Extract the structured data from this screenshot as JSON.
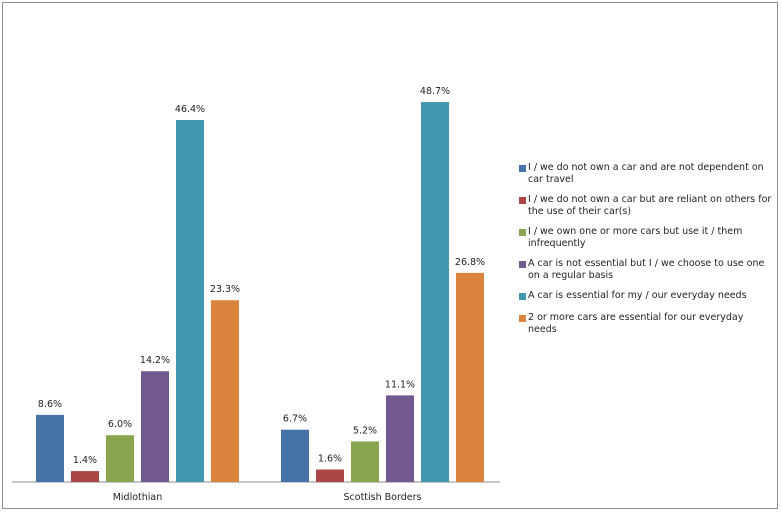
{
  "chart_data": {
    "type": "bar",
    "title": "",
    "xlabel": "",
    "ylabel": "",
    "ylim": [
      0,
      52
    ],
    "grid": false,
    "legend_position": "right",
    "categories": [
      "Midlothian",
      "Scottish Borders"
    ],
    "series": [
      {
        "name": "I / we do not own a car and are not dependent on car travel",
        "color": "#4572a7",
        "values": [
          8.6,
          6.7
        ],
        "labels": [
          "8.6%",
          "6.7%"
        ]
      },
      {
        "name": "I / we do not own a car but are reliant on others for the use of their car(s)",
        "color": "#aa4643",
        "values": [
          1.4,
          1.6
        ],
        "labels": [
          "1.4%",
          "1.6%"
        ]
      },
      {
        "name": "I / we own one or more cars but use it / them infrequently",
        "color": "#89a54e",
        "values": [
          6.0,
          5.2
        ],
        "labels": [
          "6.0%",
          "5.2%"
        ]
      },
      {
        "name": "A car is not essential but I / we choose to use one on a regular basis",
        "color": "#71588f",
        "values": [
          14.2,
          11.1
        ],
        "labels": [
          "14.2%",
          "11.1%"
        ]
      },
      {
        "name": "A car is essential for my / our everyday needs",
        "color": "#4198af",
        "values": [
          46.4,
          48.7
        ],
        "labels": [
          "46.4%",
          "48.7%"
        ]
      },
      {
        "name": "2 or more cars are essential for our everyday needs",
        "color": "#db843d",
        "values": [
          23.3,
          26.8
        ],
        "labels": [
          "23.3%",
          "26.8%"
        ]
      }
    ]
  }
}
